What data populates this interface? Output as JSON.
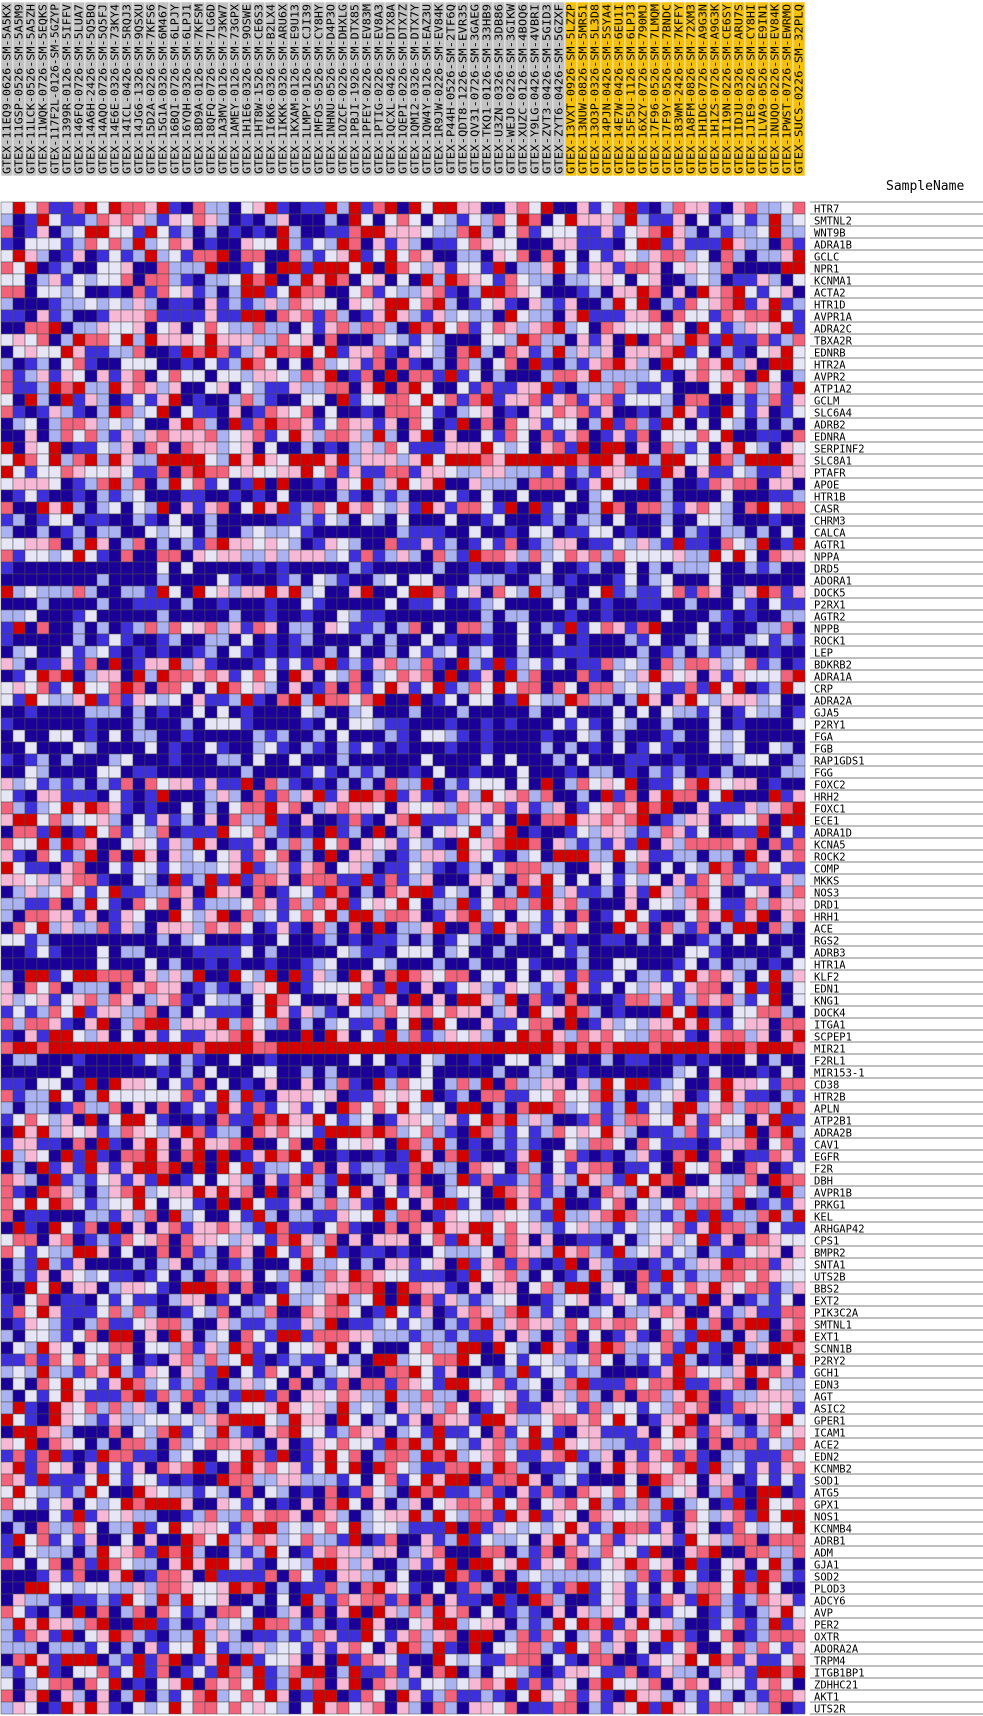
{
  "chart_data": {
    "type": "heatmap",
    "sample_header_label": "SampleName",
    "samples": [
      "GTEX-11EQ9-0626-SM-5A5KX",
      "GTEX-11GSP-0526-SM-5A5M9",
      "GTEX-11LCK-0526-SM-5A5ZH",
      "GTEX-11WQK-0726-SM-5EQKS",
      "GTEX-117F2L-0126-SM-5GZYP",
      "GTEX-1399R-0126-SM-5IFFV",
      "GTEX-146FQ-0726-SM-5LUA7",
      "GTEX-14A6H-2426-SM-5Q5BQ",
      "GTEX-14AQO-0726-SM-5Q5FJ",
      "GTEX-14E6E-0326-SM-73KY4",
      "GTEX-14ICL-0426-SM-5RQJ3",
      "GTEX-14JG6-1326-SM-9QSXU",
      "GTEX-15D2A-0226-SM-7KFS6",
      "GTEX-15G1A-0326-SM-6M467",
      "GTEX-16BQI-0726-SM-6LPJY",
      "GTEX-16YQH-0326-SM-6LPJ1",
      "GTEX-18D9A-0126-SM-7KFSM",
      "GTEX-18QFQ-0726-SM-7LG6D",
      "GTEX-1A3MV-0126-SM-73KW7",
      "GTEX-1AMEY-0126-SM-73GPX",
      "GTEX-1H1E6-0326-SM-9OSWE",
      "GTEX-1HT8W-1526-SM-CE6S3",
      "GTEX-1I6K6-0326-SM-B2LX4",
      "GTEX-1IKKK-0326-SM-ARU6X",
      "GTEX-1KXAM-0126-SM-E9U13",
      "GTEX-1LMPY-0126-SM-CJI39",
      "GTEX-1MFOS-0526-SM-CY8HY",
      "GTEX-1NHNU-0526-SM-D4P3O",
      "GTEX-1OZCF-0226-SM-DHXLG",
      "GTEX-1PBJI-1926-SM-DTX85",
      "GTEX-1PFEY-0226-SM-EV83M",
      "GTEX-1PTIG-0226-SM-EV8A3",
      "GTEX-1QCXL-0426-SM-DTX8A",
      "GTEX-1QEPI-0226-SM-DTX7Z",
      "GTEX-1QMI2-0326-SM-DTX7Y",
      "GTEX-1QW4Y-0126-SM-EAZ3U",
      "GTEX-1R9JW-0226-SM-EV84K",
      "GTEX-P44H-0526-SM-2TF6Q",
      "GTEX-QDT8-1226-SM-EVR35",
      "GTEX-QV31-0726-SM-3GAEG",
      "GTEX-TKQ1-0126-SM-33HB9",
      "GTEX-U3ZN-0326-SM-3DB86",
      "GTEX-WEJO-0226-SM-3GIKW",
      "GTEX-XUZC-0126-SM-4BOQ6",
      "GTEX-Y9LG-0426-SM-4VBRI",
      "GTEX-ZVT3-0426-SM-5GID3",
      "GTEX-ZYT6-0426-SM-5GZXF",
      "GTEX-13VXT-0926-SM-5LZZP",
      "GTEX-13NUW-0826-SM-5MR51",
      "GTEX-13O3P-0326-SM-5L3D8",
      "GTEX-14PJN-0426-SM-5SYA4",
      "GTEX-14E7W-0426-SM-6EU1I",
      "GTEX-15F5U-1126-SM-6LPJ3",
      "GTEX-16XZY-0726-SM-790MJ",
      "GTEX-17F96-0526-SM-7LMQM",
      "GTEX-17F9Y-0526-SM-7BNDC",
      "GTEX-183WM-2426-SM-7KFFY",
      "GTEX-1A8FM-0826-SM-72XM3",
      "GTEX-1H1DG-0726-SM-A9G3N",
      "GTEX-1H1ZS-0726-SM-A9G3K",
      "GTEX-1I19N-0226-SM-CE6SY",
      "GTEX-1IDJU-0326-SM-ARU7S",
      "GTEX-1J1E9-0226-SM-CY8HI",
      "GTEX-1LVA9-0526-SM-E9IN1",
      "GTEX-1NUQO-0226-SM-EV84K",
      "GTEX-1PWST-0726-SM-EWRMO",
      "GTEX-SUCS-0226-SM-32PLQ"
    ],
    "highlighted_sample_start_index": 47,
    "genes": [
      "HTR7",
      "SMTNL2",
      "WNT9B",
      "ADRA1B",
      "GCLC",
      "NPR1",
      "KCNMA1",
      "ACTA2",
      "HTR1D",
      "AVPR1A",
      "ADRA2C",
      "TBXA2R",
      "EDNRB",
      "HTR2A",
      "AVPR2",
      "ATP1A2",
      "GCLM",
      "SLC6A4",
      "ADRB2",
      "EDNRA",
      "SERPINF2",
      "SLC8A1",
      "PTAFR",
      "APOE",
      "HTR1B",
      "CASR",
      "CHRM3",
      "CALCA",
      "AGTR1",
      "NPPA",
      "DRD5",
      "ADORA1",
      "DOCK5",
      "P2RX1",
      "AGTR2",
      "NPPB",
      "ROCK1",
      "LEP",
      "BDKRB2",
      "ADRA1A",
      "CRP",
      "ADRA2A",
      "GJA5",
      "P2RY1",
      "FGA",
      "FGB",
      "RAP1GDS1",
      "FGG",
      "FOXC2",
      "HRH2",
      "FOXC1",
      "ECE1",
      "ADRA1D",
      "KCNA5",
      "ROCK2",
      "COMP",
      "MKKS",
      "NOS3",
      "DRD1",
      "HRH1",
      "ACE",
      "RGS2",
      "ADRB3",
      "HTR1A",
      "KLF2",
      "EDN1",
      "KNG1",
      "DOCK4",
      "ITGA1",
      "SCPEP1",
      "MIR21",
      "F2RL1",
      "MIR153-1",
      "CD38",
      "HTR2B",
      "APLN",
      "ATP2B1",
      "ADRA2B",
      "CAV1",
      "EGFR",
      "F2R",
      "DBH",
      "AVPR1B",
      "PRKG1",
      "KEL",
      "ARHGAP42",
      "CPS1",
      "BMPR2",
      "SNTA1",
      "UTS2B",
      "BBS2",
      "EXT2",
      "PIK3C2A",
      "SMTNL1",
      "EXT1",
      "SCNN1B",
      "P2RY2",
      "GCH1",
      "EDN3",
      "AGT",
      "ASIC2",
      "GPER1",
      "ICAM1",
      "ACE2",
      "EDN2",
      "KCNMB2",
      "SOD1",
      "ATG5",
      "GPX1",
      "NOS1",
      "KCNMB4",
      "ADRB1",
      "ADM",
      "GJA1",
      "SOD2",
      "PLOD3",
      "ADCY6",
      "AVP",
      "PER2",
      "OXTR",
      "ADORA2A",
      "TRPM4",
      "ITGB1BP1",
      "ZDHHC21",
      "AKT1",
      "UTS2R"
    ],
    "row_character": {
      "SLC8A1": "high",
      "P2RX1": "low",
      "AGTR2": "low",
      "ROCK1": "low",
      "LEP": "low",
      "FGA": "low",
      "FGB": "low",
      "FGG": "low",
      "RAP1GDS1": "low",
      "RGS2": "low",
      "ADRB3": "low",
      "HTR1A": "low",
      "MIR21": "very-high",
      "F2RL1": "low",
      "MIR153-1": "low",
      "CALCA": "low",
      "CHRM3": "low",
      "HTR1B": "low",
      "DRD5": "low",
      "ADORA1": "low",
      "GJA5": "low",
      "P2RY1": "low"
    },
    "color_scale": {
      "very_low": "#1a0099",
      "low": "#3d2fdb",
      "mid_low": "#aab2f2",
      "mid": "#e6e6f6",
      "mid_high": "#f7b8d5",
      "high": "#f2627a",
      "very_high": "#d40000"
    },
    "highlight_color": "#f2c00d",
    "header_bg_color": "#c2c2c2",
    "grid_color": "#4d4d4d"
  }
}
